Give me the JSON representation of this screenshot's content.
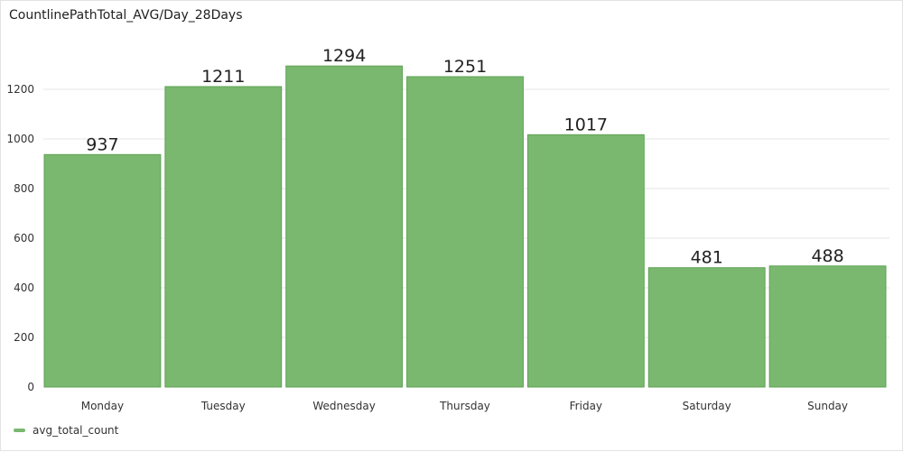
{
  "panel": {
    "title": "CountlinePathTotal_AVG/Day_28Days"
  },
  "colors": {
    "bar_fill": "#7ab870",
    "bar_stroke": "#5fa254",
    "grid": "#e6e6e6",
    "tick_text": "#333333",
    "value_text": "#222222"
  },
  "chart_data": {
    "type": "bar",
    "title": "CountlinePathTotal_AVG/Day_28Days",
    "categories": [
      "Monday",
      "Tuesday",
      "Wednesday",
      "Thursday",
      "Friday",
      "Saturday",
      "Sunday"
    ],
    "series": [
      {
        "name": "avg_total_count",
        "values": [
          937,
          1211,
          1294,
          1251,
          1017,
          481,
          488
        ]
      }
    ],
    "y_ticks": [
      "0",
      "200",
      "400",
      "600",
      "800",
      "1000",
      "1200"
    ],
    "ylim": [
      0,
      1380
    ],
    "grid": true,
    "legend_position": "bottom-left"
  }
}
